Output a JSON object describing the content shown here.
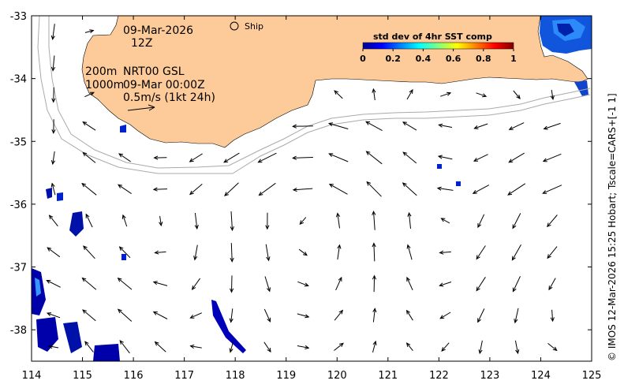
{
  "map": {
    "date": "09-Mar-2026",
    "time": "12Z",
    "contour_label_1": "200m",
    "contour_label_2": "1000m",
    "product": "NRT00 GSL",
    "product_time": "09-Mar 00:00Z",
    "scale_text": "0.5m/s (1kt 24h)",
    "ship_label": "Ship",
    "credit": "© IMOS 12-Mar-2026 15:25 Hobart; Tscale=CARS+[-1 1]"
  },
  "axes": {
    "x_ticks": [
      "114",
      "115",
      "116",
      "117",
      "118",
      "119",
      "120",
      "121",
      "122",
      "123",
      "124",
      "125"
    ],
    "y_ticks": [
      "-33",
      "-34",
      "-35",
      "-36",
      "-37",
      "-38"
    ],
    "x_range": [
      114,
      125
    ],
    "y_range": [
      -38.5,
      -33
    ]
  },
  "colorbar": {
    "title": "std dev of 4hr SST comp",
    "ticks": [
      "0",
      "0.2",
      "0.4",
      "0.6",
      "0.8",
      "1"
    ],
    "range": [
      0,
      1
    ]
  },
  "ship": {
    "lon": 118.05,
    "lat": -33.15
  },
  "colors": {
    "land": "#FDCB99",
    "contour": "#AAAAAA",
    "arrow": "#000000",
    "sst_low": "#0000AA",
    "sst_mid": "#3399FF"
  }
}
